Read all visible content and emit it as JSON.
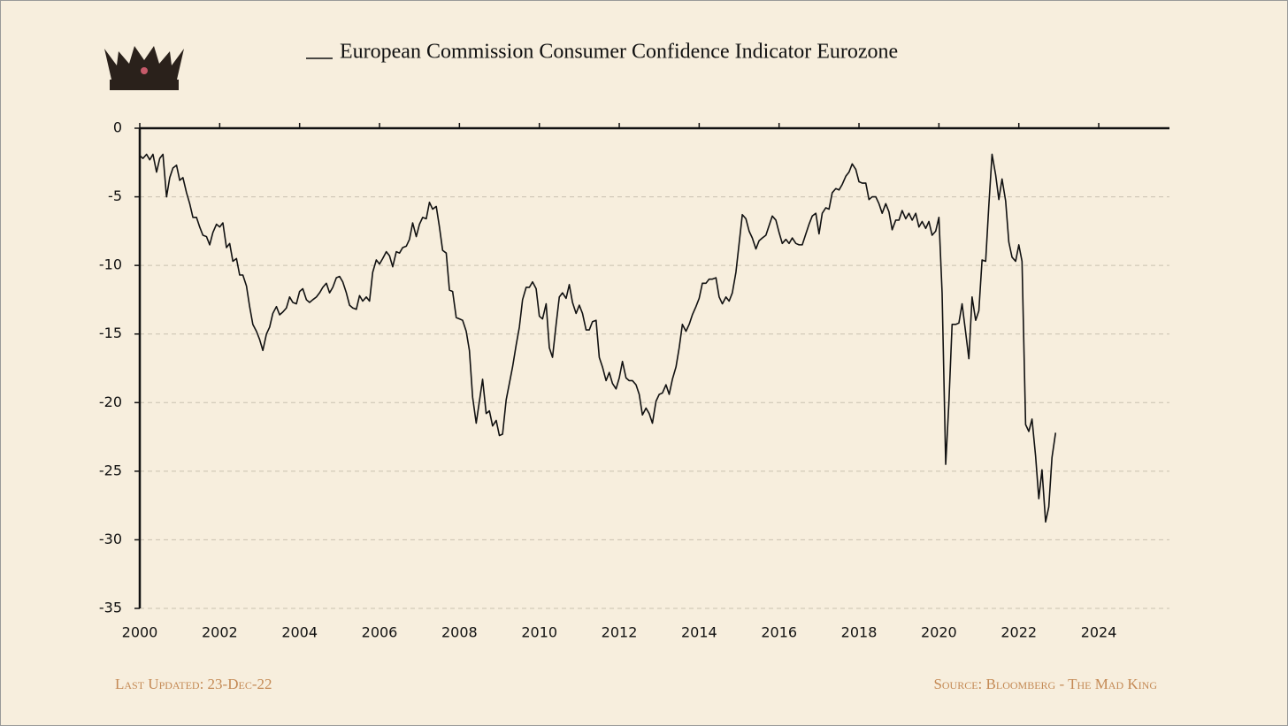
{
  "chart_data": {
    "type": "line",
    "series": [
      {
        "name": "European Commission Consumer Confidence Indicator Eurozone",
        "color": "#111111",
        "values": [
          -2,
          -2.2,
          -1.9,
          -2.3,
          -1.9,
          -3.2,
          -2.2,
          -1.9,
          -5,
          -3.6,
          -2.9,
          -2.7,
          -3.8,
          -3.6,
          -4.7,
          -5.5,
          -6.5,
          -6.5,
          -7.2,
          -7.8,
          -7.9,
          -8.5,
          -7.6,
          -7,
          -7.2,
          -6.9,
          -8.7,
          -8.4,
          -9.7,
          -9.5,
          -10.7,
          -10.7,
          -11.5,
          -13,
          -14.3,
          -14.8,
          -15.4,
          -16.2,
          -15,
          -14.5,
          -13.5,
          -13,
          -13.6,
          -13.4,
          -13.1,
          -12.3,
          -12.7,
          -12.8,
          -11.9,
          -11.7,
          -12.5,
          -12.7,
          -12.5,
          -12.3,
          -12,
          -11.6,
          -11.3,
          -12,
          -11.6,
          -10.9,
          -10.8,
          -11.2,
          -12,
          -12.9,
          -13.1,
          -13.2,
          -12.2,
          -12.6,
          -12.3,
          -12.6,
          -10.5,
          -9.6,
          -9.9,
          -9.5,
          -9,
          -9.3,
          -10.1,
          -9,
          -9.1,
          -8.7,
          -8.6,
          -8.1,
          -6.9,
          -7.9,
          -7,
          -6.5,
          -6.6,
          -5.4,
          -5.9,
          -5.7,
          -7.2,
          -8.9,
          -9.1,
          -11.8,
          -11.9,
          -13.8,
          -13.9,
          -14,
          -14.8,
          -16.2,
          -19.6,
          -21.5,
          -19.9,
          -18.3,
          -20.8,
          -20.6,
          -21.7,
          -21.3,
          -22.4,
          -22.3,
          -19.8,
          -18.6,
          -17.4,
          -15.8,
          -14.5,
          -12.5,
          -11.6,
          -11.6,
          -11.2,
          -11.7,
          -13.7,
          -13.9,
          -12.8,
          -16,
          -16.7,
          -14.3,
          -12.3,
          -12,
          -12.4,
          -11.4,
          -12.7,
          -13.5,
          -12.9,
          -13.5,
          -14.7,
          -14.7,
          -14.1,
          -14,
          -16.7,
          -17.4,
          -18.4,
          -17.8,
          -18.6,
          -19,
          -18.2,
          -17,
          -18.2,
          -18.4,
          -18.4,
          -18.7,
          -19.4,
          -20.9,
          -20.4,
          -20.8,
          -21.5,
          -19.9,
          -19.4,
          -19.3,
          -18.7,
          -19.4,
          -18.3,
          -17.4,
          -16,
          -14.3,
          -14.8,
          -14.3,
          -13.6,
          -13,
          -12.4,
          -11.3,
          -11.3,
          -11,
          -11,
          -10.9,
          -12.3,
          -12.8,
          -12.3,
          -12.6,
          -12,
          -10.5,
          -8.4,
          -6.3,
          -6.6,
          -7.5,
          -8,
          -8.8,
          -8.2,
          -8,
          -7.8,
          -7.1,
          -6.4,
          -6.7,
          -7.6,
          -8.4,
          -8.1,
          -8.4,
          -8,
          -8.4,
          -8.5,
          -8.5,
          -7.7,
          -7,
          -6.4,
          -6.2,
          -7.7,
          -6.2,
          -5.8,
          -5.9,
          -4.7,
          -4.4,
          -4.5,
          -4.1,
          -3.5,
          -3.2,
          -2.6,
          -3,
          -3.9,
          -4,
          -4,
          -5.2,
          -5,
          -5,
          -5.5,
          -6.2,
          -5.5,
          -6.1,
          -7.4,
          -6.7,
          -6.7,
          -6,
          -6.6,
          -6.2,
          -6.7,
          -6.2,
          -7.2,
          -6.8,
          -7.3,
          -6.8,
          -7.8,
          -7.5,
          -6.5,
          -12,
          -24.5,
          -20,
          -14.3,
          -14.3,
          -14.2,
          -12.8,
          -14.9,
          -16.8,
          -12.3,
          -14,
          -13.3,
          -9.6,
          -9.7,
          -5.6,
          -1.9,
          -3.4,
          -5.2,
          -3.7,
          -5.3,
          -8.3,
          -9.4,
          -9.7,
          -8.5,
          -9.7,
          -21.6,
          -22.1,
          -21.2,
          -23.9,
          -27,
          -24.9,
          -28.7,
          -27.6,
          -24,
          -22.2
        ]
      }
    ],
    "x": [
      2000,
      2000.08,
      2000.17,
      2000.25,
      2000.33,
      2000.42,
      2000.5,
      2000.58,
      2000.67,
      2000.75,
      2000.83,
      2000.92,
      2001,
      2001.08,
      2001.17,
      2001.25,
      2001.33,
      2001.42,
      2001.5,
      2001.58,
      2001.67,
      2001.75,
      2001.83,
      2001.92,
      2002,
      2002.08,
      2002.17,
      2002.25,
      2002.33,
      2002.42,
      2002.5,
      2002.58,
      2002.67,
      2002.75,
      2002.83,
      2002.92,
      2003,
      2003.08,
      2003.17,
      2003.25,
      2003.33,
      2003.42,
      2003.5,
      2003.58,
      2003.67,
      2003.75,
      2003.83,
      2003.92,
      2004,
      2004.08,
      2004.17,
      2004.25,
      2004.33,
      2004.42,
      2004.5,
      2004.58,
      2004.67,
      2004.75,
      2004.83,
      2004.92,
      2005,
      2005.08,
      2005.17,
      2005.25,
      2005.33,
      2005.42,
      2005.5,
      2005.58,
      2005.67,
      2005.75,
      2005.83,
      2005.92,
      2006,
      2006.08,
      2006.17,
      2006.25,
      2006.33,
      2006.42,
      2006.5,
      2006.58,
      2006.67,
      2006.75,
      2006.83,
      2006.92,
      2007,
      2007.08,
      2007.17,
      2007.25,
      2007.33,
      2007.42,
      2007.5,
      2007.58,
      2007.67,
      2007.75,
      2007.83,
      2007.92,
      2008,
      2008.08,
      2008.17,
      2008.25,
      2008.33,
      2008.42,
      2008.5,
      2008.58,
      2008.67,
      2008.75,
      2008.83,
      2008.92,
      2009,
      2009.08,
      2009.17,
      2009.25,
      2009.33,
      2009.42,
      2009.5,
      2009.58,
      2009.67,
      2009.75,
      2009.83,
      2009.92,
      2010,
      2010.08,
      2010.17,
      2010.25,
      2010.33,
      2010.42,
      2010.5,
      2010.58,
      2010.67,
      2010.75,
      2010.83,
      2010.92,
      2011,
      2011.08,
      2011.17,
      2011.25,
      2011.33,
      2011.42,
      2011.5,
      2011.58,
      2011.67,
      2011.75,
      2011.83,
      2011.92,
      2012,
      2012.08,
      2012.17,
      2012.25,
      2012.33,
      2012.42,
      2012.5,
      2012.58,
      2012.67,
      2012.75,
      2012.83,
      2012.92,
      2013,
      2013.08,
      2013.17,
      2013.25,
      2013.33,
      2013.42,
      2013.5,
      2013.58,
      2013.67,
      2013.75,
      2013.83,
      2013.92,
      2014,
      2014.08,
      2014.17,
      2014.25,
      2014.33,
      2014.42,
      2014.5,
      2014.58,
      2014.67,
      2014.75,
      2014.83,
      2014.92,
      2015,
      2015.08,
      2015.17,
      2015.25,
      2015.33,
      2015.42,
      2015.5,
      2015.58,
      2015.67,
      2015.75,
      2015.83,
      2015.92,
      2016,
      2016.08,
      2016.17,
      2016.25,
      2016.33,
      2016.42,
      2016.5,
      2016.58,
      2016.67,
      2016.75,
      2016.83,
      2016.92,
      2017,
      2017.08,
      2017.17,
      2017.25,
      2017.33,
      2017.42,
      2017.5,
      2017.58,
      2017.67,
      2017.75,
      2017.83,
      2017.92,
      2018,
      2018.08,
      2018.17,
      2018.25,
      2018.33,
      2018.42,
      2018.5,
      2018.58,
      2018.67,
      2018.75,
      2018.83,
      2018.92,
      2019,
      2019.08,
      2019.17,
      2019.25,
      2019.33,
      2019.42,
      2019.5,
      2019.58,
      2019.67,
      2019.75,
      2019.83,
      2019.92,
      2020,
      2020.08,
      2020.17,
      2020.25,
      2020.33,
      2020.42,
      2020.5,
      2020.58,
      2020.67,
      2020.75,
      2020.83,
      2020.92,
      2021,
      2021.08,
      2021.17,
      2021.25,
      2021.33,
      2021.42,
      2021.5,
      2021.58,
      2021.67,
      2021.75,
      2021.83,
      2021.92,
      2022,
      2022.08,
      2022.17,
      2022.25,
      2022.33,
      2022.42,
      2022.5,
      2022.58,
      2022.67,
      2022.75,
      2022.83,
      2022.92
    ],
    "xlim": [
      2000,
      2025.77
    ],
    "xticks": [
      2000,
      2002,
      2004,
      2006,
      2008,
      2010,
      2012,
      2014,
      2016,
      2018,
      2020,
      2022,
      2024
    ],
    "ylim": [
      -35,
      0
    ],
    "yticks": [
      0,
      -5,
      -10,
      -15,
      -20,
      -25,
      -30,
      -35
    ],
    "grid": true,
    "footer_left": "Last Updated: 23-Dec-22",
    "footer_right": "Source: Bloomberg - The Mad King"
  }
}
